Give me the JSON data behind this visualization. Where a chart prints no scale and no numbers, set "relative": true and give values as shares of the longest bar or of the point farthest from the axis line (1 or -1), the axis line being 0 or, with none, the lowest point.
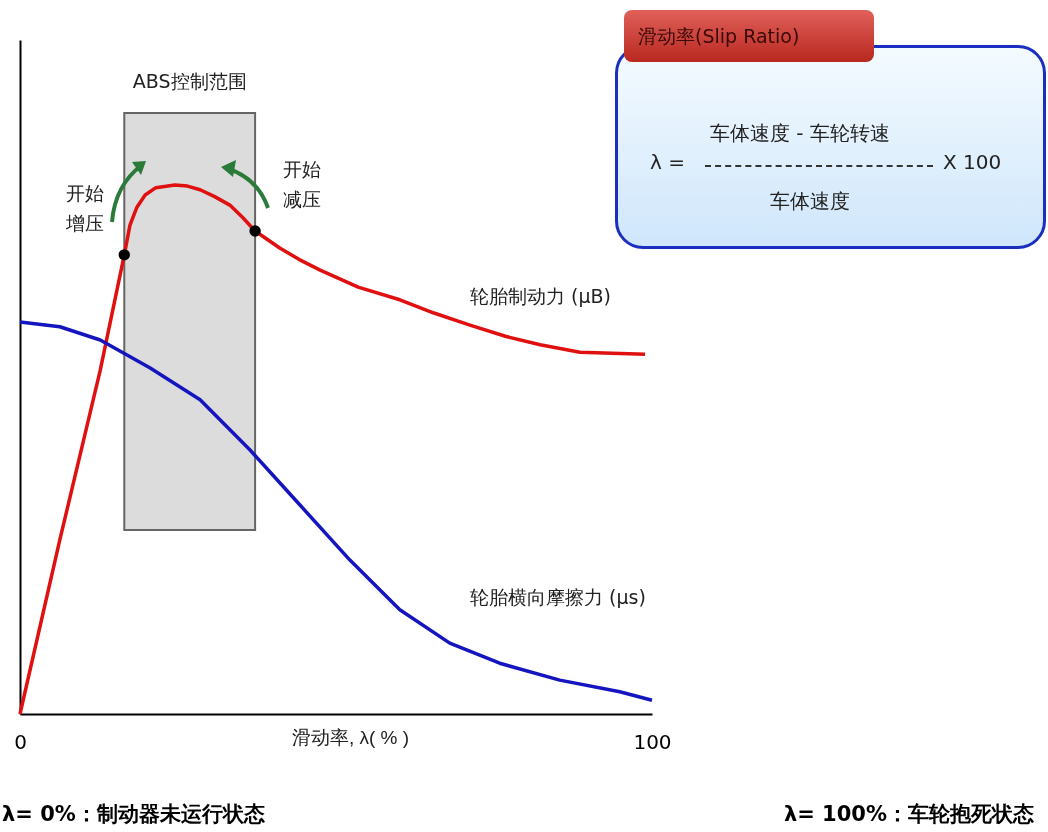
{
  "chart_data": [
    {
      "type": "line",
      "relative": true,
      "xlabel": "滑动率, λ( % )",
      "xlim": [
        0,
        100
      ],
      "xticks": [
        0,
        100
      ],
      "marker": "none",
      "line_style": "solid",
      "series": [
        {
          "name": "轮胎制动力 (μB)",
          "color": "#e01010",
          "x": [
            0,
            6.3,
            12.7,
            16.5,
            17.4,
            18.5,
            19.8,
            21.5,
            24.5,
            26.5,
            28.5,
            30.8,
            33.2,
            35.2,
            37.2,
            41.1,
            44.2,
            47.5,
            53.5,
            60.1,
            65.5,
            71.2,
            76.8,
            82.3,
            88.6,
            98.9
          ],
          "values": [
            0,
            0.329,
            0.65,
            0.868,
            0.924,
            0.958,
            0.981,
            0.995,
            1,
            0.998,
            0.991,
            0.978,
            0.962,
            0.939,
            0.913,
            0.881,
            0.859,
            0.839,
            0.807,
            0.783,
            0.758,
            0.735,
            0.714,
            0.698,
            0.684,
            0.68
          ]
        },
        {
          "name": "轮胎横向摩擦力 (μs)",
          "color": "#1515c0",
          "x": [
            0,
            6.3,
            12.7,
            20.6,
            28.5,
            36.4,
            44.3,
            52.2,
            60.1,
            68,
            75.9,
            85.4,
            94.9,
            100
          ],
          "values": [
            0.741,
            0.732,
            0.707,
            0.654,
            0.594,
            0.499,
            0.395,
            0.291,
            0.197,
            0.134,
            0.096,
            0.064,
            0.042,
            0.026
          ]
        },
        {
          "type": "scatter",
          "marker": "circle",
          "color": "#000000",
          "x": [
            16.5,
            37.2
          ],
          "values": [
            0.868,
            0.913
          ]
        }
      ],
      "bands": [
        {
          "axis": "x",
          "from": 16.5,
          "to": 37.2,
          "label": "ABS控制范围",
          "color": "#d9d9d9"
        }
      ],
      "annotations": [
        {
          "text": "开始增压",
          "x": 16.5,
          "y": 0.868
        },
        {
          "text": "开始减压",
          "x": 37.2,
          "y": 0.913
        },
        "λ= 0%：制动器未运行状态",
        "λ= 100%：车轮抱死状态"
      ]
    },
    {
      "type": "other",
      "title": "滑动率(Slip Ratio)",
      "annotations": [
        "λ =",
        "车体速度 - 车轮转速",
        "车体速度",
        "X 100"
      ]
    }
  ]
}
